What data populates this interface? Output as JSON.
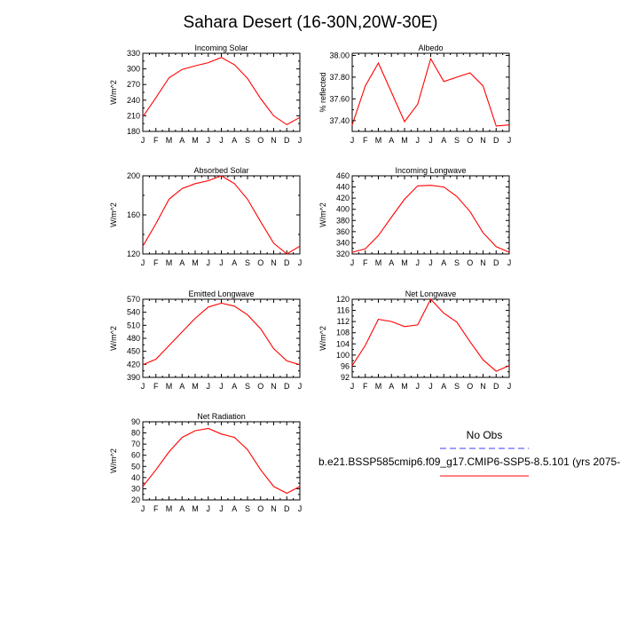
{
  "title": "Sahara Desert (16-30N,20W-30E)",
  "chart_data": [
    {
      "type": "line",
      "title": "Incoming Solar",
      "ylabel": "W/m^2",
      "categories": [
        "J",
        "F",
        "M",
        "A",
        "M",
        "J",
        "J",
        "A",
        "S",
        "O",
        "N",
        "D",
        "J"
      ],
      "ylim": [
        180,
        330
      ],
      "yticks": [
        "180",
        "210",
        "240",
        "270",
        "300",
        "330"
      ],
      "series": [
        {
          "values": [
            208,
            245,
            283,
            299,
            306,
            312,
            322,
            308,
            282,
            243,
            210,
            193,
            207
          ],
          "color": "#ff0000"
        }
      ]
    },
    {
      "type": "line",
      "title": "Albedo",
      "ylabel": "% reflected",
      "categories": [
        "J",
        "F",
        "M",
        "A",
        "M",
        "J",
        "J",
        "A",
        "S",
        "O",
        "N",
        "D",
        "J"
      ],
      "ylim": [
        37.3,
        38.02
      ],
      "yticks": [
        "37.40",
        "37.60",
        "37.80",
        "38.00"
      ],
      "series": [
        {
          "values": [
            37.36,
            37.72,
            37.93,
            37.66,
            37.39,
            37.55,
            37.97,
            37.76,
            37.8,
            37.84,
            37.72,
            37.35,
            37.36
          ],
          "color": "#ff0000"
        }
      ]
    },
    {
      "type": "line",
      "title": "Absorbed Solar",
      "ylabel": "W/m^2",
      "categories": [
        "J",
        "F",
        "M",
        "A",
        "M",
        "J",
        "J",
        "A",
        "S",
        "O",
        "N",
        "D",
        "J"
      ],
      "ylim": [
        120,
        200
      ],
      "yticks": [
        "120",
        "160",
        "200"
      ],
      "series": [
        {
          "values": [
            128,
            151,
            176,
            187,
            192,
            195,
            200,
            192,
            176,
            153,
            131,
            120,
            128
          ],
          "color": "#ff0000"
        }
      ]
    },
    {
      "type": "line",
      "title": "Incoming Longwave",
      "ylabel": "W/m^2",
      "categories": [
        "J",
        "F",
        "M",
        "A",
        "M",
        "J",
        "J",
        "A",
        "S",
        "O",
        "N",
        "D",
        "J"
      ],
      "ylim": [
        320,
        460
      ],
      "yticks": [
        "320",
        "340",
        "360",
        "380",
        "400",
        "420",
        "440",
        "460"
      ],
      "series": [
        {
          "values": [
            323,
            329,
            353,
            386,
            418,
            442,
            443,
            440,
            423,
            396,
            358,
            333,
            323
          ],
          "color": "#ff0000"
        }
      ]
    },
    {
      "type": "line",
      "title": "Emitted Longwave",
      "ylabel": "W/m^2",
      "categories": [
        "J",
        "F",
        "M",
        "A",
        "M",
        "J",
        "J",
        "A",
        "S",
        "O",
        "N",
        "D",
        "J"
      ],
      "ylim": [
        390,
        570
      ],
      "yticks": [
        "390",
        "420",
        "450",
        "480",
        "510",
        "540",
        "570"
      ],
      "series": [
        {
          "values": [
            419,
            432,
            463,
            495,
            526,
            552,
            561,
            554,
            534,
            502,
            456,
            428,
            419
          ],
          "color": "#ff0000"
        }
      ]
    },
    {
      "type": "line",
      "title": "Net Longwave",
      "ylabel": "W/m^2",
      "categories": [
        "J",
        "F",
        "M",
        "A",
        "M",
        "J",
        "J",
        "A",
        "S",
        "O",
        "N",
        "D",
        "J"
      ],
      "ylim": [
        92,
        120
      ],
      "yticks": [
        "92",
        "96",
        "100",
        "104",
        "108",
        "112",
        "116",
        "120"
      ],
      "series": [
        {
          "values": [
            96.2,
            103.5,
            112.8,
            112,
            110.2,
            110.8,
            120,
            115,
            111.8,
            104.8,
            98.3,
            94.2,
            96.2
          ],
          "color": "#ff0000"
        }
      ]
    },
    {
      "type": "line",
      "title": "Net Radiation",
      "ylabel": "W/m^2",
      "categories": [
        "J",
        "F",
        "M",
        "A",
        "M",
        "J",
        "J",
        "A",
        "S",
        "O",
        "N",
        "D",
        "J"
      ],
      "ylim": [
        20,
        90
      ],
      "yticks": [
        "20",
        "30",
        "40",
        "50",
        "60",
        "70",
        "80",
        "90"
      ],
      "series": [
        {
          "values": [
            32,
            47,
            63,
            76,
            82,
            84,
            79,
            76,
            65,
            47,
            32,
            26,
            32
          ],
          "color": "#ff0000"
        }
      ]
    }
  ],
  "legend": {
    "obs_label": "No Obs",
    "obs_color": "#3c3cff",
    "model_label": "b.e21.BSSP585cmip6.f09_g17.CMIP6-SSP5-8.5.101 (yrs 2075-",
    "model_color": "#ff0000"
  }
}
